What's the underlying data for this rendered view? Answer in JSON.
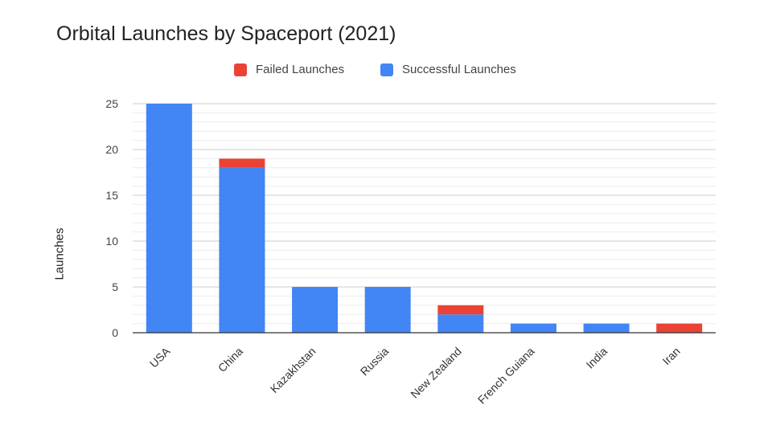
{
  "chart_data": {
    "type": "bar",
    "stacked": true,
    "title": "Orbital Launches by Spaceport (2021)",
    "xlabel": "",
    "ylabel": "Launches",
    "categories": [
      "USA",
      "China",
      "Kazakhstan",
      "Russia",
      "New Zealand",
      "French Guiana",
      "India",
      "Iran"
    ],
    "series": [
      {
        "name": "Successful Launches",
        "color": "#4285F4",
        "values": [
          25,
          18,
          5,
          5,
          2,
          1,
          1,
          0
        ]
      },
      {
        "name": "Failed Launches",
        "color": "#EA4335",
        "values": [
          0,
          1,
          0,
          0,
          1,
          0,
          0,
          1
        ]
      }
    ],
    "legend_order": [
      "Failed Launches",
      "Successful Launches"
    ],
    "legend_position": "top",
    "ylim": [
      0,
      25
    ],
    "yticks": [
      0,
      5,
      10,
      15,
      20,
      25
    ],
    "minor_gridlines": true
  }
}
